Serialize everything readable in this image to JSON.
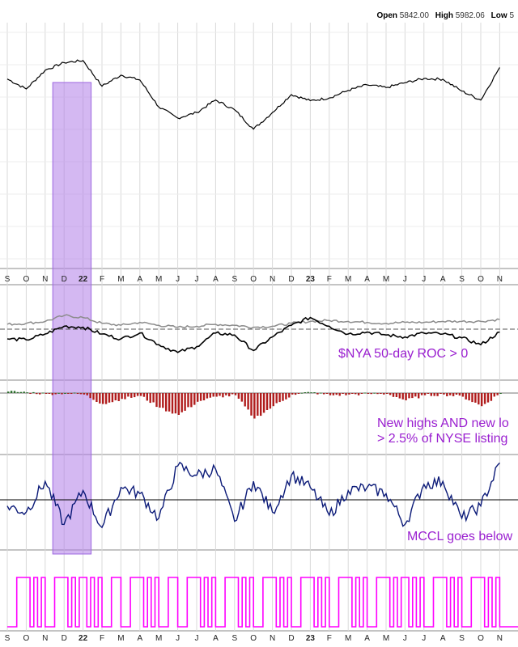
{
  "header": {
    "open_label": "Open",
    "open_value": "5842.00",
    "high_label": "High",
    "high_value": "5982.06",
    "low_label": "Low",
    "low_value": "5"
  },
  "annotations": {
    "roc": "$NYA 50-day ROC > 0",
    "highs_lows_line1": "New highs AND new lo",
    "highs_lows_line2": "> 2.5% of NYSE listing",
    "mccl": "MCCL goes below"
  },
  "colors": {
    "price": "#000000",
    "roc_primary": "#000000",
    "roc_secondary": "#8c8c8c",
    "highlight": "#b07de8",
    "net_negative": "#b01c1c",
    "net_positive": "#2a6e2a",
    "mccl": "#0b1a78",
    "signal": "#ff00ff",
    "annotation": "#9a1fd0",
    "grid": "#d9d9d9"
  },
  "chart_data": {
    "type": "line",
    "x_axis_labels": [
      "S",
      "O",
      "N",
      "D",
      "22",
      "F",
      "M",
      "A",
      "M",
      "J",
      "J",
      "A",
      "S",
      "O",
      "N",
      "D",
      "23",
      "F",
      "M",
      "A",
      "M",
      "J",
      "J",
      "A",
      "S",
      "O",
      "N"
    ],
    "x_axis_bold": [
      "22",
      "23"
    ],
    "highlight_period": [
      "D",
      "22"
    ],
    "panels": [
      {
        "name": "price",
        "series": [
          {
            "x": [
              "S",
              "O",
              "N",
              "D",
              "22",
              "F",
              "M",
              "A",
              "M",
              "J",
              "J",
              "A",
              "S",
              "O",
              "N",
              "D",
              "23",
              "F",
              "M",
              "A",
              "M",
              "J",
              "J",
              "A",
              "S",
              "O",
              "N"
            ],
            "values": [
              5842,
              5770,
              5905,
              5960,
              5975,
              5790,
              5870,
              5835,
              5640,
              5560,
              5600,
              5690,
              5620,
              5480,
              5600,
              5730,
              5685,
              5705,
              5760,
              5800,
              5780,
              5815,
              5845,
              5840,
              5755,
              5690,
              5925
            ]
          }
        ]
      },
      {
        "name": "roc",
        "annotation": "$NYA 50-day ROC > 0",
        "series": [
          {
            "values": [
              0.5,
              0.6,
              0.8,
              1.4,
              1.2,
              0.6,
              0.4,
              0.7,
              0.4,
              0.2,
              0.3,
              0.5,
              0.4,
              0.2,
              0.3,
              0.6,
              0.8,
              0.9,
              0.8,
              0.7,
              0.6,
              0.7,
              0.7,
              0.8,
              0.8,
              0.8,
              1.0
            ]
          },
          {
            "values": [
              -1.0,
              -1.1,
              -0.5,
              0.3,
              0.2,
              -0.5,
              -1.0,
              -0.4,
              -1.6,
              -2.4,
              -1.8,
              -0.4,
              -0.6,
              -2.2,
              -0.8,
              0.4,
              1.2,
              0.3,
              -0.5,
              -0.3,
              -0.6,
              -0.8,
              -0.4,
              -0.5,
              -0.9,
              -1.6,
              -0.3
            ]
          }
        ],
        "reference_line": 0
      },
      {
        "name": "net_new_highs_lows",
        "annotation": "New highs AND new lo > 2.5% of NYSE listing",
        "series": [
          {
            "values": [
              2,
              1,
              -1,
              0,
              -2,
              -15,
              -8,
              -4,
              -20,
              -30,
              -12,
              -5,
              -3,
              -35,
              -18,
              -2,
              1,
              -3,
              -2,
              -1,
              -1,
              -10,
              -3,
              -2,
              -5,
              -18,
              0
            ]
          }
        ]
      },
      {
        "name": "mccl",
        "annotation": "MCCL goes below",
        "series": [
          {
            "values": [
              -20,
              -40,
              60,
              -80,
              30,
              -90,
              40,
              20,
              -60,
              110,
              80,
              100,
              -70,
              60,
              -40,
              80,
              40,
              -50,
              30,
              40,
              20,
              -80,
              50,
              60,
              -60,
              -20,
              120
            ]
          }
        ],
        "reference_line": 0
      },
      {
        "name": "signal",
        "series": [
          {
            "values": [
              0,
              1,
              0,
              1,
              1,
              0,
              0,
              1,
              0,
              0,
              1,
              0,
              1,
              0,
              1,
              0,
              1,
              0,
              1,
              0,
              1,
              1,
              0,
              1,
              0,
              1,
              0
            ]
          }
        ]
      }
    ]
  }
}
